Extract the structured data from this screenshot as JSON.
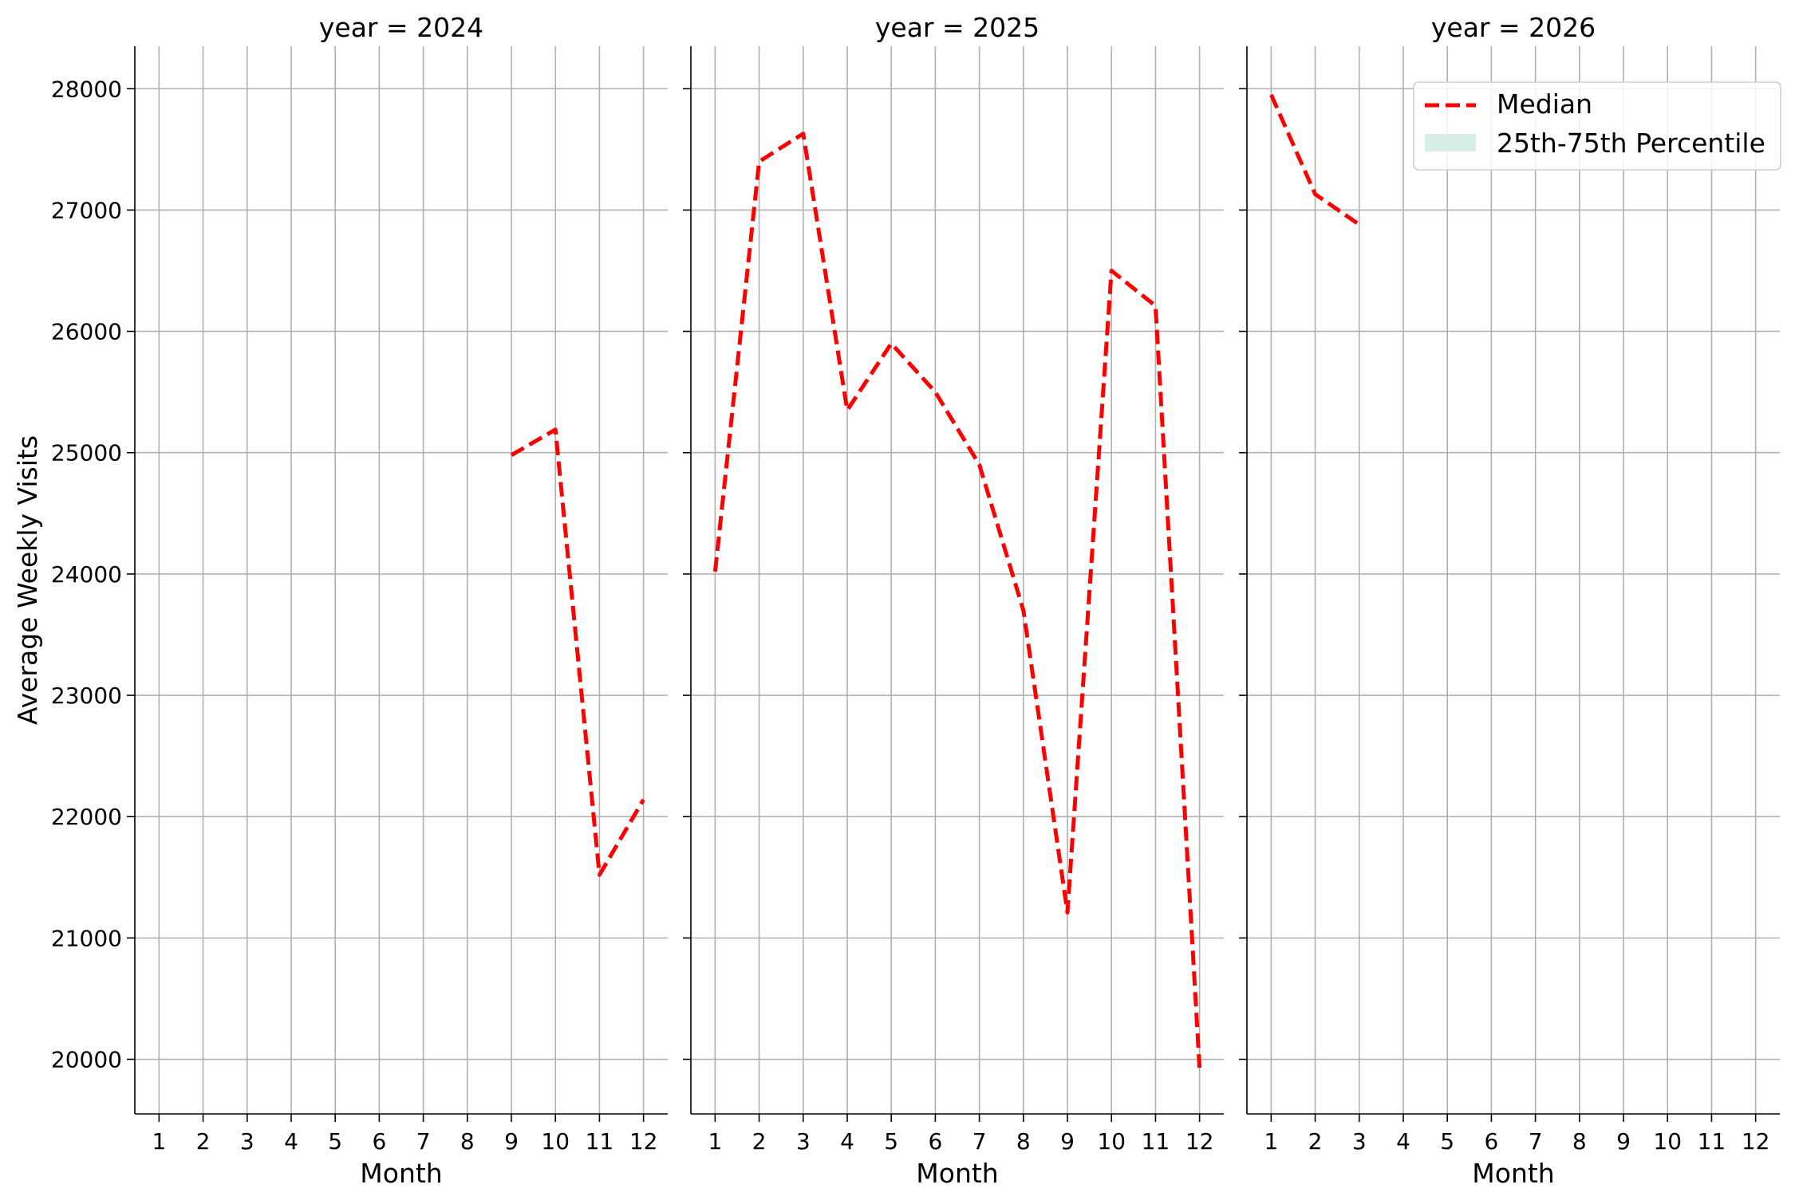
{
  "chart_data": {
    "type": "line",
    "ylabel": "Average Weekly Visits",
    "xlabel": "Month",
    "ylim": [
      19550,
      28350
    ],
    "xlim": [
      0.45,
      12.55
    ],
    "yticks": [
      20000,
      21000,
      22000,
      23000,
      24000,
      25000,
      26000,
      27000,
      28000
    ],
    "xticks": [
      1,
      2,
      3,
      4,
      5,
      6,
      7,
      8,
      9,
      10,
      11,
      12
    ],
    "grid": true,
    "legend": {
      "placement": "top-right",
      "entries": [
        {
          "label": "Median",
          "color": "#ff0000",
          "style": "dashed-line"
        },
        {
          "label": "25th-75th Percentile",
          "color": "#d7ede8",
          "style": "fill-band"
        }
      ]
    },
    "panels": [
      {
        "title": "year = 2024",
        "series": [
          {
            "name": "Median",
            "x": [
              9,
              10,
              11,
              12
            ],
            "y": [
              24980,
              25190,
              21520,
              22140
            ]
          }
        ]
      },
      {
        "title": "year = 2025",
        "series": [
          {
            "name": "Median",
            "x": [
              1,
              2,
              3,
              4,
              5,
              6,
              7,
              8,
              9,
              10,
              11,
              12
            ],
            "y": [
              24020,
              27400,
              27630,
              25350,
              25900,
              25500,
              24900,
              23700,
              21210,
              26500,
              26210,
              19930
            ]
          }
        ]
      },
      {
        "title": "year = 2026",
        "series": [
          {
            "name": "Median",
            "x": [
              1,
              2,
              3
            ],
            "y": [
              27950,
              27130,
              26880
            ]
          }
        ]
      }
    ],
    "colors": {
      "median": "#ff0000",
      "band": "#d7ede8",
      "grid": "#b0b0b0",
      "axis": "#000000"
    }
  }
}
